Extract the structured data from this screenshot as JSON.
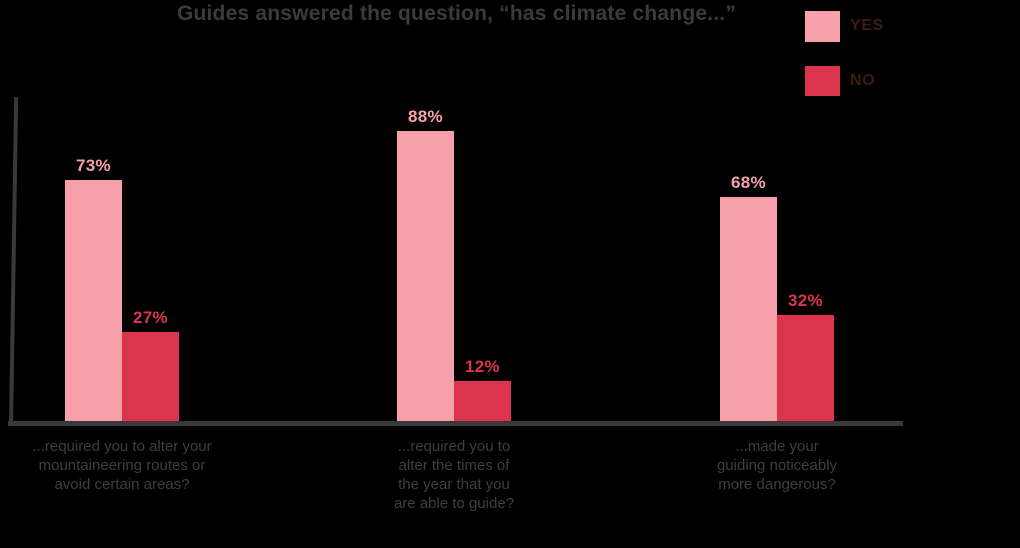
{
  "chart_data": {
    "type": "bar",
    "title": "Guides answered the question, “has climate change...”",
    "categories": [
      "...required you to alter your\nmountaineering routes or\navoid certain areas?",
      "...required you to\nalter the times of\nthe year that you\nare able to guide?",
      "...made your\nguiding noticeably\nmore dangerous?"
    ],
    "series": [
      {
        "name": "YES",
        "values": [
          73,
          88,
          68
        ],
        "color": "#F7A0AA"
      },
      {
        "name": "NO",
        "values": [
          27,
          12,
          32
        ],
        "color": "#DD344D"
      }
    ],
    "value_labels": [
      [
        "73%",
        "88%",
        "68%"
      ],
      [
        "27%",
        "12%",
        "32%"
      ]
    ],
    "xlabel": "",
    "ylabel": "",
    "ylim": [
      0,
      100
    ],
    "grid": false,
    "legend_position": "top-right"
  },
  "legend": {
    "yes_label": "YES",
    "no_label": "NO"
  },
  "colors": {
    "background": "#000000",
    "title_text": "#3B3B3F",
    "axis": "#39393B",
    "category_text": "#3E3E42",
    "legend_text": "#3E1C14",
    "yes_bar": "#F7A0AA",
    "no_bar": "#DD344D"
  }
}
